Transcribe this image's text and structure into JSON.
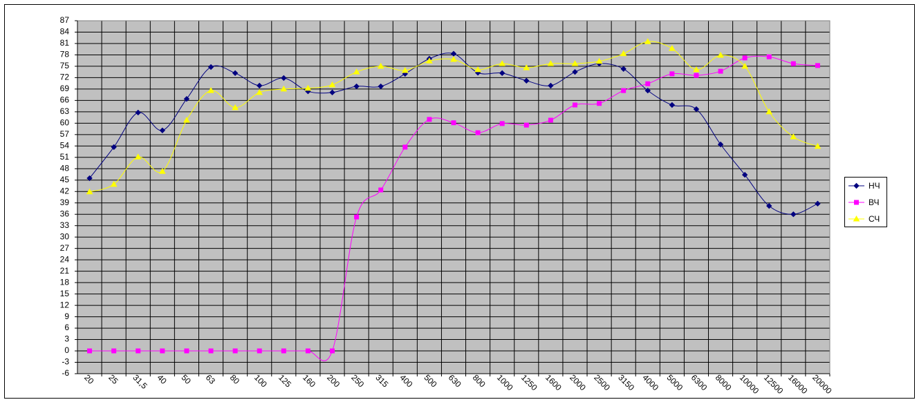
{
  "chart_data": {
    "type": "line",
    "categories": [
      "20",
      "25",
      "31,5",
      "40",
      "50",
      "63",
      "80",
      "100",
      "125",
      "160",
      "200",
      "250",
      "315",
      "400",
      "500",
      "630",
      "800",
      "1000",
      "1250",
      "1600",
      "2000",
      "2500",
      "3150",
      "4000",
      "5000",
      "6300",
      "8000",
      "10000",
      "12500",
      "16000",
      "20000"
    ],
    "series": [
      {
        "name": "НЧ",
        "color": "#000080",
        "marker": "diamond",
        "values": [
          45.5,
          53.7,
          62.8,
          58.1,
          66.4,
          74.8,
          73.2,
          69.9,
          71.9,
          68.4,
          68.1,
          69.7,
          69.7,
          73,
          77,
          78.3,
          73.3,
          73.2,
          71.2,
          69.9,
          73.5,
          75.7,
          74.3,
          68.6,
          64.8,
          63.7,
          54.4,
          46.4,
          38.2,
          36,
          38.8
        ]
      },
      {
        "name": "ВЧ",
        "color": "#ff00ff",
        "marker": "square",
        "values": [
          0,
          0,
          0,
          0,
          0,
          0,
          0,
          0,
          0,
          0,
          0,
          35.3,
          42.4,
          53.7,
          61,
          60.1,
          57.5,
          59.9,
          59.5,
          60.8,
          64.8,
          65.2,
          68.6,
          70.4,
          73,
          72.6,
          73.7,
          77.2,
          77.5,
          75.7,
          75.2
        ]
      },
      {
        "name": "СЧ",
        "color": "#ffff00",
        "marker": "triangle",
        "values": [
          41.9,
          43.9,
          51.1,
          47.3,
          60.8,
          68.6,
          64.1,
          68.1,
          69,
          69.2,
          70.1,
          73.5,
          75,
          73.9,
          76.4,
          76.8,
          74.1,
          75.7,
          74.6,
          75.7,
          75.7,
          76.3,
          78.3,
          81.5,
          79.7,
          74.1,
          77.9,
          75,
          63,
          56.4,
          53.9
        ]
      }
    ],
    "ylim": [
      -6,
      87
    ],
    "yticks": [
      -6,
      -3,
      0,
      3,
      6,
      9,
      12,
      15,
      18,
      21,
      24,
      27,
      30,
      33,
      36,
      39,
      42,
      45,
      48,
      51,
      54,
      57,
      60,
      63,
      66,
      69,
      72,
      75,
      78,
      81,
      84,
      87
    ],
    "grid": true,
    "legend": "right",
    "smooth": true
  }
}
